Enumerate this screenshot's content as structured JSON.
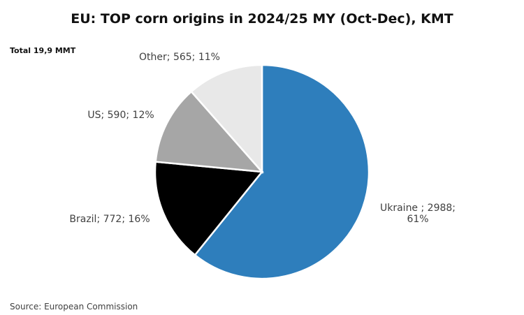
{
  "chart_data": {
    "type": "pie",
    "title": "EU: TOP corn origins in 2024/25  MY (Oct-Dec), KMT",
    "subtitle": "Total 19,9 MMT",
    "source": "Source: European Commission",
    "values": [
      2988,
      772,
      590,
      565
    ],
    "value_labels": [
      "Ukraine ; 2988; 61%",
      "Brazil; 772; 16%",
      "US; 590; 12%",
      "Other; 565; 11%"
    ],
    "colors": [
      "#2e7ebc",
      "#000000",
      "#a6a6a6",
      "#e8e8e8"
    ]
  }
}
